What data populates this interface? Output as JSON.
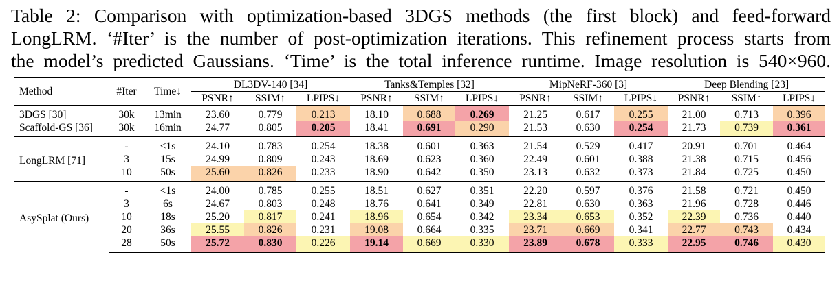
{
  "caption": {
    "line1": "Table 2: Comparison with optimization-based 3DGS methods (the first block) and feed-forward",
    "line2": "LongLRM. ‘#Iter’ is the number of post-optimization iterations. This refinement process starts from",
    "line3": "the model’s predicted Gaussians. ‘Time’ is the total inference runtime. Image resolution is 540×960."
  },
  "headers": {
    "method": "Method",
    "iter": "#Iter",
    "time": "Time↓",
    "datasets": [
      "DL3DV-140 [34]",
      "Tanks&Temples [32]",
      "MipNeRF-360 [3]",
      "Deep Blending [23]"
    ],
    "metrics": [
      "PSNR↑",
      "SSIM↑",
      "LPIPS↓"
    ]
  },
  "colors": {
    "best": "#f4a3a8",
    "second": "#fbd3aa",
    "third": "#fcf5b3"
  },
  "blocks": [
    {
      "method": "3DGS [30] / Scaffold-GS [36]",
      "rows": [
        {
          "method": "3DGS [30]",
          "iter": "30k",
          "time": "13min",
          "cells": [
            {
              "v": "23.60"
            },
            {
              "v": "0.779"
            },
            {
              "v": "0.213",
              "hl": "orange"
            },
            {
              "v": "18.10"
            },
            {
              "v": "0.688",
              "hl": "orange"
            },
            {
              "v": "0.269",
              "hl": "red",
              "b": true
            },
            {
              "v": "21.25"
            },
            {
              "v": "0.617"
            },
            {
              "v": "0.255",
              "hl": "orange"
            },
            {
              "v": "21.00"
            },
            {
              "v": "0.713"
            },
            {
              "v": "0.396",
              "hl": "orange"
            }
          ]
        },
        {
          "method": "Scaffold-GS [36]",
          "iter": "30k",
          "time": "16min",
          "cells": [
            {
              "v": "24.77"
            },
            {
              "v": "0.805"
            },
            {
              "v": "0.205",
              "hl": "red",
              "b": true
            },
            {
              "v": "18.41"
            },
            {
              "v": "0.691",
              "hl": "red",
              "b": true
            },
            {
              "v": "0.290",
              "hl": "orange"
            },
            {
              "v": "21.53"
            },
            {
              "v": "0.630"
            },
            {
              "v": "0.254",
              "hl": "red",
              "b": true
            },
            {
              "v": "21.73"
            },
            {
              "v": "0.739",
              "hl": "yellow"
            },
            {
              "v": "0.361",
              "hl": "red",
              "b": true
            }
          ]
        }
      ]
    },
    {
      "method": "LongLRM [71]",
      "rows": [
        {
          "iter": "-",
          "time": "<1s",
          "cells": [
            {
              "v": "24.10"
            },
            {
              "v": "0.783"
            },
            {
              "v": "0.254"
            },
            {
              "v": "18.38"
            },
            {
              "v": "0.601"
            },
            {
              "v": "0.363"
            },
            {
              "v": "21.54"
            },
            {
              "v": "0.529"
            },
            {
              "v": "0.417"
            },
            {
              "v": "20.91"
            },
            {
              "v": "0.701"
            },
            {
              "v": "0.464"
            }
          ]
        },
        {
          "iter": "3",
          "time": "15s",
          "cells": [
            {
              "v": "24.99"
            },
            {
              "v": "0.809"
            },
            {
              "v": "0.243"
            },
            {
              "v": "18.69"
            },
            {
              "v": "0.623"
            },
            {
              "v": "0.360"
            },
            {
              "v": "22.49"
            },
            {
              "v": "0.601"
            },
            {
              "v": "0.388"
            },
            {
              "v": "21.38"
            },
            {
              "v": "0.715"
            },
            {
              "v": "0.456"
            }
          ]
        },
        {
          "iter": "10",
          "time": "50s",
          "cells": [
            {
              "v": "25.60",
              "hl": "orange"
            },
            {
              "v": "0.826",
              "hl": "orange"
            },
            {
              "v": "0.233"
            },
            {
              "v": "18.90"
            },
            {
              "v": "0.642"
            },
            {
              "v": "0.350"
            },
            {
              "v": "23.13"
            },
            {
              "v": "0.632"
            },
            {
              "v": "0.373"
            },
            {
              "v": "21.84"
            },
            {
              "v": "0.725"
            },
            {
              "v": "0.450"
            }
          ]
        }
      ]
    },
    {
      "method": "AsySplat (Ours)",
      "rows": [
        {
          "iter": "-",
          "time": "<1s",
          "cells": [
            {
              "v": "24.00"
            },
            {
              "v": "0.785"
            },
            {
              "v": "0.255"
            },
            {
              "v": "18.51"
            },
            {
              "v": "0.627"
            },
            {
              "v": "0.351"
            },
            {
              "v": "22.20"
            },
            {
              "v": "0.597"
            },
            {
              "v": "0.376"
            },
            {
              "v": "21.58"
            },
            {
              "v": "0.721"
            },
            {
              "v": "0.450"
            }
          ]
        },
        {
          "iter": "3",
          "time": "6s",
          "cells": [
            {
              "v": "24.67"
            },
            {
              "v": "0.803"
            },
            {
              "v": "0.248"
            },
            {
              "v": "18.76"
            },
            {
              "v": "0.641"
            },
            {
              "v": "0.349"
            },
            {
              "v": "22.81"
            },
            {
              "v": "0.630"
            },
            {
              "v": "0.363"
            },
            {
              "v": "21.96"
            },
            {
              "v": "0.728"
            },
            {
              "v": "0.446"
            }
          ]
        },
        {
          "iter": "10",
          "time": "18s",
          "cells": [
            {
              "v": "25.20"
            },
            {
              "v": "0.817",
              "hl": "yellow"
            },
            {
              "v": "0.241"
            },
            {
              "v": "18.96",
              "hl": "yellow"
            },
            {
              "v": "0.654"
            },
            {
              "v": "0.342"
            },
            {
              "v": "23.34",
              "hl": "yellow"
            },
            {
              "v": "0.653",
              "hl": "yellow"
            },
            {
              "v": "0.352"
            },
            {
              "v": "22.39",
              "hl": "yellow"
            },
            {
              "v": "0.736"
            },
            {
              "v": "0.440"
            }
          ]
        },
        {
          "iter": "20",
          "time": "36s",
          "cells": [
            {
              "v": "25.55",
              "hl": "yellow"
            },
            {
              "v": "0.826",
              "hl": "orange"
            },
            {
              "v": "0.231"
            },
            {
              "v": "19.08",
              "hl": "orange"
            },
            {
              "v": "0.664"
            },
            {
              "v": "0.335"
            },
            {
              "v": "23.71",
              "hl": "orange"
            },
            {
              "v": "0.669",
              "hl": "orange"
            },
            {
              "v": "0.341"
            },
            {
              "v": "22.77",
              "hl": "orange"
            },
            {
              "v": "0.743",
              "hl": "orange"
            },
            {
              "v": "0.434"
            }
          ]
        },
        {
          "iter": "28",
          "time": "50s",
          "cells": [
            {
              "v": "25.72",
              "hl": "red",
              "b": true
            },
            {
              "v": "0.830",
              "hl": "red",
              "b": true
            },
            {
              "v": "0.226",
              "hl": "yellow"
            },
            {
              "v": "19.14",
              "hl": "red",
              "b": true
            },
            {
              "v": "0.669",
              "hl": "yellow"
            },
            {
              "v": "0.330",
              "hl": "yellow"
            },
            {
              "v": "23.89",
              "hl": "red",
              "b": true
            },
            {
              "v": "0.678",
              "hl": "red",
              "b": true
            },
            {
              "v": "0.333",
              "hl": "yellow"
            },
            {
              "v": "22.95",
              "hl": "red",
              "b": true
            },
            {
              "v": "0.746",
              "hl": "red",
              "b": true
            },
            {
              "v": "0.430",
              "hl": "yellow"
            }
          ]
        }
      ]
    }
  ]
}
